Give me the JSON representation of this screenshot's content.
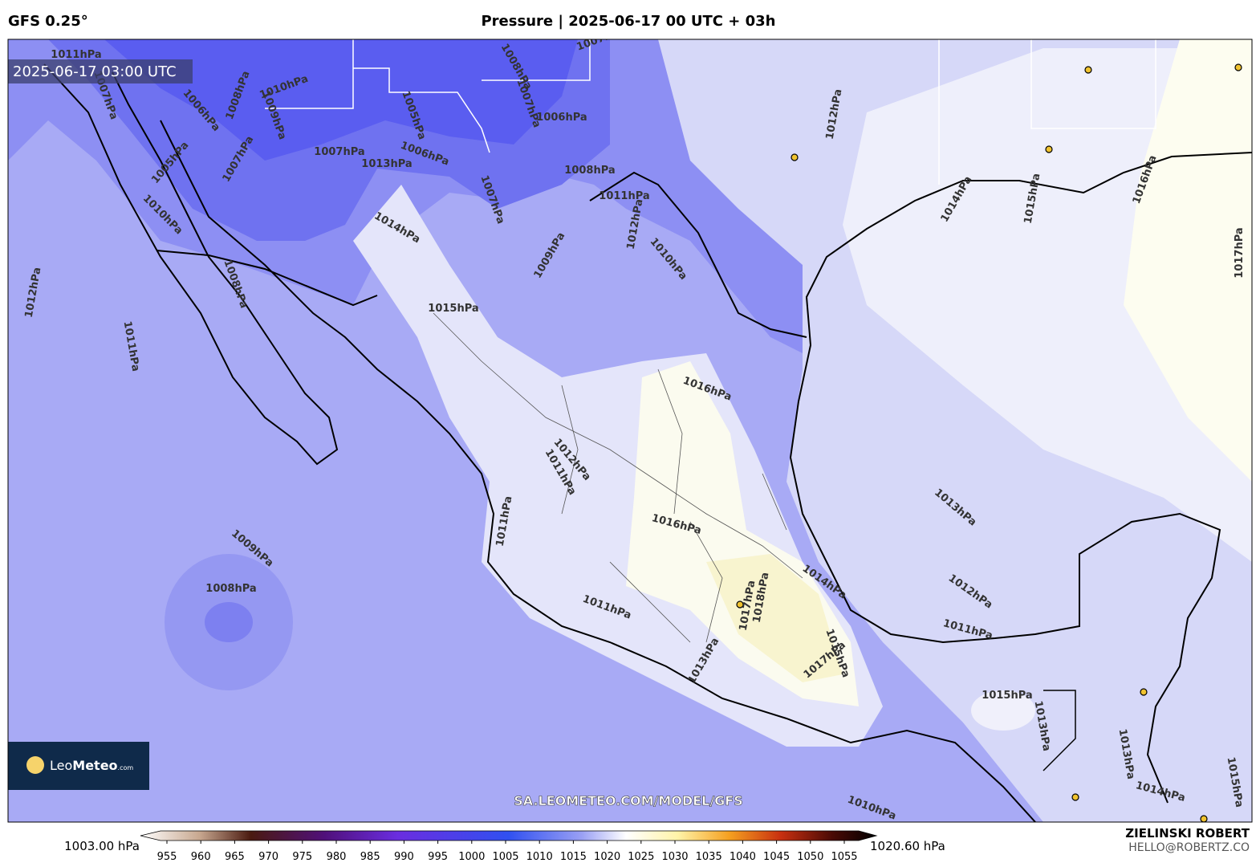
{
  "header": {
    "model": "GFS 0.25°",
    "title": "Pressure | 2025-06-17 00 UTC + 03h",
    "valid_time": "2025-06-17 03:00 UTC"
  },
  "map": {
    "contour_labels": [
      "1011hPa",
      "1007hPa",
      "1006hPa",
      "1008hPa",
      "1010hPa",
      "1009hPa",
      "1005hPa",
      "1007hPa",
      "1007hPa",
      "1013hPa",
      "1005hPa",
      "1006hPa",
      "1008hPa",
      "1007hPa",
      "1006hPa",
      "1007hPa",
      "1008hPa",
      "1007hPa",
      "1011hPa",
      "1012hPa",
      "1010hPa",
      "1009hPa",
      "1014hPa",
      "1010hPa",
      "1008hPa",
      "1015hPa",
      "1012hPa",
      "1011hPa",
      "1012hPa",
      "1014hPa",
      "1015hPa",
      "1016hPa",
      "1017hPa",
      "1016hPa",
      "1012hPa",
      "1011hPa",
      "1011hPa",
      "1016hPa",
      "1009hPa",
      "1008hPa",
      "1013hPa",
      "1014hPa",
      "1012hPa",
      "1011hPa",
      "1011hPa",
      "1017hPa",
      "1018hPa",
      "1013hPa",
      "1017hPa",
      "1015hPa",
      "1015hPa",
      "1013hPa",
      "1013hPa",
      "1014hPa",
      "1015hPa",
      "1010hPa"
    ],
    "watermark": "SA.LEOMETEO.COM/MODEL/GFS",
    "logo": {
      "light": "Leo",
      "bold": "Meteo",
      "suffix": ".com"
    }
  },
  "colorbar": {
    "ticks": [
      955,
      960,
      965,
      970,
      975,
      980,
      985,
      990,
      995,
      1000,
      1005,
      1010,
      1015,
      1020,
      1025,
      1030,
      1035,
      1040,
      1045,
      1050,
      1055
    ],
    "min_label": "1003.00 hPa",
    "max_label": "1020.60 hPa"
  },
  "credits": {
    "author": "ZIELINSKI ROBERT",
    "email": "HELLO@ROBERTZ.CO"
  }
}
